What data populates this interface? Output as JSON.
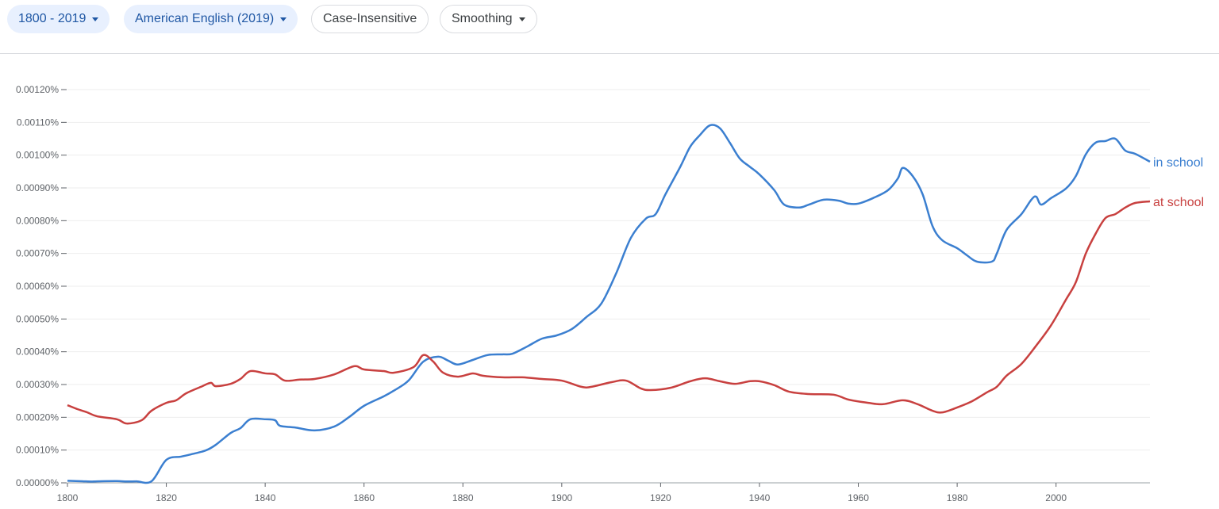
{
  "toolbar": {
    "year_range": "1800 - 2019",
    "corpus": "American English (2019)",
    "case": "Case-Insensitive",
    "smoothing": "Smoothing"
  },
  "chart_data": {
    "type": "line",
    "title": "",
    "xlabel": "",
    "ylabel": "",
    "xlim": [
      1800,
      2019
    ],
    "ylim": [
      0,
      0.0012
    ],
    "grid": true,
    "legend": "inline at line ends (right)",
    "y_ticks": [
      "0.00000%",
      "0.00010%",
      "0.00020%",
      "0.00030%",
      "0.00040%",
      "0.00050%",
      "0.00060%",
      "0.00070%",
      "0.00080%",
      "0.00090%",
      "0.00100%",
      "0.00110%",
      "0.00120%"
    ],
    "y_tick_values": [
      0,
      0.0001,
      0.0002,
      0.0003,
      0.0004,
      0.0005,
      0.0006,
      0.0007,
      0.0008,
      0.0009,
      0.001,
      0.0011,
      0.0012
    ],
    "x_ticks": [
      "1800",
      "1820",
      "1840",
      "1860",
      "1880",
      "1900",
      "1920",
      "1940",
      "1960",
      "1980",
      "2000"
    ],
    "x_tick_values": [
      1800,
      1820,
      1840,
      1860,
      1880,
      1900,
      1920,
      1940,
      1960,
      1980,
      2000
    ],
    "series": [
      {
        "name": "in school",
        "color": "#3b7fd0",
        "x": [
          1800,
          1803,
          1805,
          1806,
          1810,
          1812,
          1814,
          1817,
          1820,
          1823,
          1825,
          1828,
          1830,
          1833,
          1835,
          1837,
          1840,
          1842,
          1843,
          1846,
          1850,
          1854,
          1857,
          1860,
          1864,
          1866,
          1869,
          1872,
          1875,
          1877,
          1879,
          1882,
          1885,
          1888,
          1890,
          1893,
          1896,
          1899,
          1902,
          1905,
          1908,
          1911,
          1914,
          1917,
          1919,
          1921,
          1924,
          1926,
          1928,
          1930,
          1932,
          1934,
          1936,
          1938,
          1940,
          1943,
          1945,
          1948,
          1950,
          1953,
          1956,
          1958,
          1960,
          1963,
          1966,
          1968,
          1969,
          1971,
          1973,
          1975,
          1977,
          1980,
          1982,
          1984,
          1987,
          1988,
          1990,
          1993,
          1995,
          1996,
          1997,
          1999,
          2002,
          2004,
          2006,
          2008,
          2010,
          2012,
          2014,
          2016,
          2019
        ],
        "values": [
          6.3e-06,
          4.8e-06,
          3.9e-06,
          4.6e-06,
          5.3e-06,
          4.1e-06,
          4.6e-06,
          4.8e-06,
          7e-05,
          8e-05,
          8.7e-05,
          9.9e-05,
          0.000116,
          0.000152,
          0.000167,
          0.000194,
          0.000194,
          0.000191,
          0.000174,
          0.000169,
          0.00016,
          0.000172,
          0.000201,
          0.000235,
          0.000264,
          0.000281,
          0.000312,
          0.00037,
          0.000385,
          0.000373,
          0.000361,
          0.000375,
          0.00039,
          0.000392,
          0.000394,
          0.000416,
          0.00044,
          0.00045,
          0.000469,
          0.000506,
          0.000547,
          0.000639,
          0.000748,
          0.000806,
          0.00082,
          0.000881,
          0.000965,
          0.001026,
          0.001062,
          0.001091,
          0.001082,
          0.001038,
          0.00099,
          0.000965,
          0.000941,
          0.000893,
          0.000849,
          0.00084,
          0.000849,
          0.000864,
          0.000861,
          0.000852,
          0.000852,
          0.000869,
          0.000893,
          0.000929,
          0.000961,
          0.000936,
          0.000881,
          0.000784,
          0.00074,
          0.000716,
          0.000694,
          0.000675,
          0.000675,
          0.000699,
          0.000772,
          0.00082,
          0.000864,
          0.000873,
          0.000849,
          0.000869,
          0.000898,
          0.000936,
          0.001002,
          0.001038,
          0.001043,
          0.00105,
          0.001014,
          0.001004,
          0.00098
        ]
      },
      {
        "name": "at school",
        "color": "#c8403f",
        "x": [
          1800,
          1802,
          1804,
          1806,
          1810,
          1812,
          1815,
          1817,
          1820,
          1822,
          1824,
          1827,
          1829,
          1830,
          1833,
          1835,
          1837,
          1840,
          1842,
          1844,
          1847,
          1850,
          1854,
          1858,
          1860,
          1864,
          1866,
          1870,
          1872,
          1874,
          1876,
          1879,
          1882,
          1884,
          1888,
          1892,
          1896,
          1900,
          1904,
          1906,
          1910,
          1913,
          1916,
          1918,
          1922,
          1926,
          1929,
          1932,
          1935,
          1938,
          1940,
          1943,
          1946,
          1950,
          1955,
          1958,
          1962,
          1965,
          1969,
          1972,
          1975,
          1977,
          1980,
          1983,
          1986,
          1988,
          1990,
          1993,
          1996,
          1999,
          2002,
          2004,
          2006,
          2008,
          2010,
          2012,
          2014,
          2016,
          2019
        ],
        "values": [
          0.000237,
          0.000225,
          0.000215,
          0.000203,
          0.000194,
          0.000181,
          0.000191,
          0.00022,
          0.000244,
          0.000252,
          0.000273,
          0.000293,
          0.000305,
          0.000295,
          0.000302,
          0.000317,
          0.000341,
          0.000334,
          0.000331,
          0.000312,
          0.000315,
          0.000317,
          0.000331,
          0.000356,
          0.000346,
          0.000341,
          0.000336,
          0.000353,
          0.00039,
          0.00037,
          0.000336,
          0.000324,
          0.000334,
          0.000327,
          0.000322,
          0.000322,
          0.000317,
          0.000312,
          0.000293,
          0.000293,
          0.000307,
          0.000312,
          0.000288,
          0.000283,
          0.00029,
          0.00031,
          0.000319,
          0.00031,
          0.000302,
          0.00031,
          0.00031,
          0.000298,
          0.000278,
          0.000271,
          0.000269,
          0.000254,
          0.000244,
          0.00024,
          0.000252,
          0.00024,
          0.00022,
          0.000215,
          0.00023,
          0.000249,
          0.000276,
          0.000293,
          0.000327,
          0.000363,
          0.000419,
          0.000481,
          0.000559,
          0.000612,
          0.000699,
          0.00076,
          0.000808,
          0.00082,
          0.00084,
          0.000854,
          0.000859
        ]
      }
    ]
  }
}
